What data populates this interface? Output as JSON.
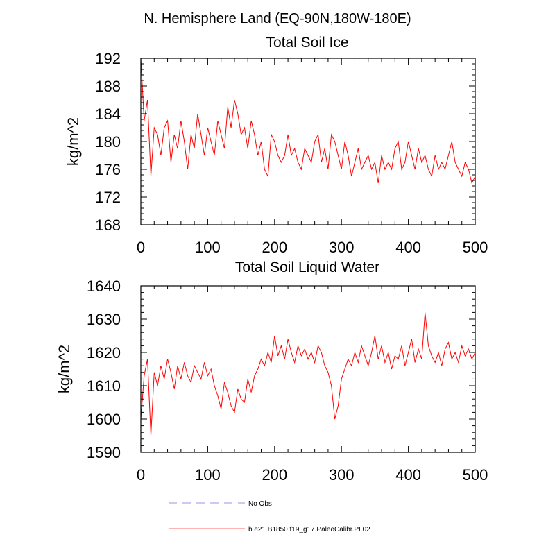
{
  "page": {
    "main_title": "N. Hemisphere Land (EQ-90N,180W-180E)"
  },
  "legend": {
    "entries": [
      {
        "label": "No Obs",
        "color": "#aaaaee",
        "style": "dashed"
      },
      {
        "label": "b.e21.B1850.f19_g17.PaleoCalibr.PI.02",
        "color": "#ff8888",
        "style": "solid"
      }
    ]
  },
  "chart_data": [
    {
      "type": "line",
      "title": "Total Soil Ice",
      "xlabel": "",
      "ylabel": "kg/m^2",
      "xlim": [
        0,
        500
      ],
      "ylim": [
        168,
        192
      ],
      "xticks": [
        0,
        100,
        200,
        300,
        400,
        500
      ],
      "yticks": [
        168,
        172,
        176,
        180,
        184,
        188,
        192
      ],
      "grid": false,
      "series": [
        {
          "name": "b.e21.B1850.f19_g17.PaleoCalibr.PI.02",
          "color": "#ff0000",
          "x_start": 0,
          "x_step": 5,
          "values": [
            192,
            183,
            186,
            175,
            182,
            181,
            178,
            182,
            183,
            177,
            181,
            179,
            183,
            180,
            176,
            181,
            179,
            184,
            181,
            178,
            182,
            180,
            178,
            183,
            181,
            179,
            185,
            182,
            186,
            184,
            181,
            182,
            179,
            183,
            181,
            178,
            180,
            176,
            175,
            181,
            180,
            178,
            177,
            178,
            181,
            178,
            179,
            177,
            176,
            179,
            178,
            177,
            180,
            181,
            177,
            179,
            176,
            181,
            180,
            178,
            176,
            180,
            178,
            175,
            177,
            179,
            176,
            177,
            178,
            176,
            177,
            174,
            178,
            176,
            177,
            176,
            179,
            180,
            176,
            177,
            180,
            178,
            176,
            179,
            177,
            178,
            176,
            175,
            178,
            176,
            177,
            176,
            178,
            180,
            177,
            176,
            175,
            177,
            176,
            174,
            175
          ]
        }
      ]
    },
    {
      "type": "line",
      "title": "Total Soil Liquid Water",
      "xlabel": "",
      "ylabel": "kg/m^2",
      "xlim": [
        0,
        500
      ],
      "ylim": [
        1590,
        1640
      ],
      "xticks": [
        0,
        100,
        200,
        300,
        400,
        500
      ],
      "yticks": [
        1590,
        1600,
        1610,
        1620,
        1630,
        1640
      ],
      "grid": false,
      "series": [
        {
          "name": "b.e21.B1850.f19_g17.PaleoCalibr.PI.02",
          "color": "#ff0000",
          "x_start": 0,
          "x_step": 5,
          "values": [
            1600,
            1613,
            1618,
            1595,
            1614,
            1610,
            1616,
            1612,
            1618,
            1614,
            1609,
            1616,
            1612,
            1617,
            1613,
            1611,
            1616,
            1614,
            1612,
            1617,
            1613,
            1615,
            1610,
            1607,
            1603,
            1611,
            1608,
            1604,
            1602,
            1609,
            1606,
            1605,
            1612,
            1608,
            1613,
            1615,
            1618,
            1616,
            1620,
            1617,
            1625,
            1619,
            1622,
            1618,
            1624,
            1620,
            1617,
            1622,
            1619,
            1621,
            1618,
            1620,
            1617,
            1622,
            1620,
            1616,
            1614,
            1610,
            1600,
            1604,
            1612,
            1615,
            1618,
            1616,
            1620,
            1617,
            1622,
            1619,
            1616,
            1620,
            1625,
            1618,
            1622,
            1617,
            1620,
            1615,
            1619,
            1618,
            1622,
            1616,
            1620,
            1624,
            1617,
            1621,
            1618,
            1632,
            1622,
            1619,
            1617,
            1620,
            1616,
            1621,
            1623,
            1618,
            1620,
            1617,
            1622,
            1619,
            1621,
            1618,
            1620
          ]
        }
      ]
    }
  ]
}
